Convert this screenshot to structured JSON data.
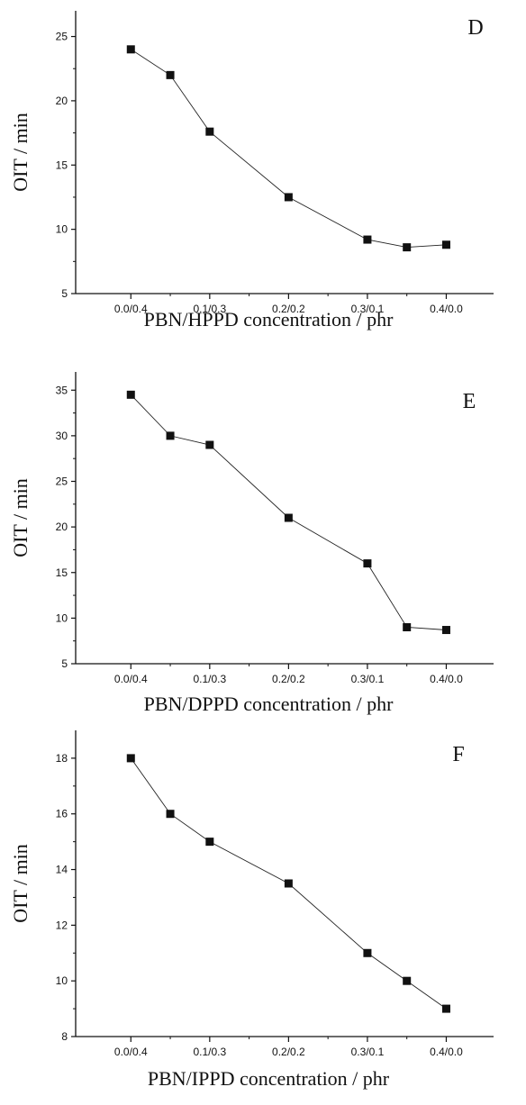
{
  "chart_data": [
    {
      "type": "line",
      "panel_label": "D",
      "xlabel": "PBN/HPPD  concentration / phr",
      "ylabel": "OIT / min",
      "x_tick_labels": [
        "0.0/0.4",
        "0.1/0.3",
        "0.2/0.2",
        "0.3/0.1",
        "0.4/0.0"
      ],
      "x_tick_values": [
        0.0,
        0.1,
        0.2,
        0.3,
        0.4
      ],
      "xlim": [
        -0.07,
        0.46
      ],
      "ylim": [
        5,
        27
      ],
      "y_ticks": [
        5,
        10,
        15,
        20,
        25
      ],
      "grid": false,
      "marker": "square",
      "series": [
        {
          "x": [
            0.0,
            0.05,
            0.1,
            0.2,
            0.3,
            0.35,
            0.4
          ],
          "y": [
            24.0,
            22.0,
            17.6,
            12.5,
            9.2,
            8.6,
            8.8
          ]
        }
      ]
    },
    {
      "type": "line",
      "panel_label": "E",
      "xlabel": "PBN/DPPD  concentration / phr",
      "ylabel": "OIT / min",
      "x_tick_labels": [
        "0.0/0.4",
        "0.1/0.3",
        "0.2/0.2",
        "0.3/0.1",
        "0.4/0.0"
      ],
      "x_tick_values": [
        0.0,
        0.1,
        0.2,
        0.3,
        0.4
      ],
      "xlim": [
        -0.07,
        0.46
      ],
      "ylim": [
        5,
        37
      ],
      "y_ticks": [
        5,
        10,
        15,
        20,
        25,
        30,
        35
      ],
      "grid": false,
      "marker": "square",
      "series": [
        {
          "x": [
            0.0,
            0.05,
            0.1,
            0.2,
            0.3,
            0.35,
            0.4
          ],
          "y": [
            34.5,
            30.0,
            29.0,
            21.0,
            16.0,
            9.0,
            8.7
          ]
        }
      ]
    },
    {
      "type": "line",
      "panel_label": "F",
      "xlabel": "PBN/IPPD  concentration / phr",
      "ylabel": "OIT / min",
      "x_tick_labels": [
        "0.0/0.4",
        "0.1/0.3",
        "0.2/0.2",
        "0.3/0.1",
        "0.4/0.0"
      ],
      "x_tick_values": [
        0.0,
        0.1,
        0.2,
        0.3,
        0.4
      ],
      "xlim": [
        -0.07,
        0.46
      ],
      "ylim": [
        8,
        19
      ],
      "y_ticks": [
        8,
        10,
        12,
        14,
        16,
        18
      ],
      "grid": false,
      "marker": "square",
      "series": [
        {
          "x": [
            0.0,
            0.05,
            0.1,
            0.2,
            0.3,
            0.35,
            0.4
          ],
          "y": [
            18.0,
            16.0,
            15.0,
            13.5,
            11.0,
            10.0,
            9.0
          ]
        }
      ]
    }
  ]
}
